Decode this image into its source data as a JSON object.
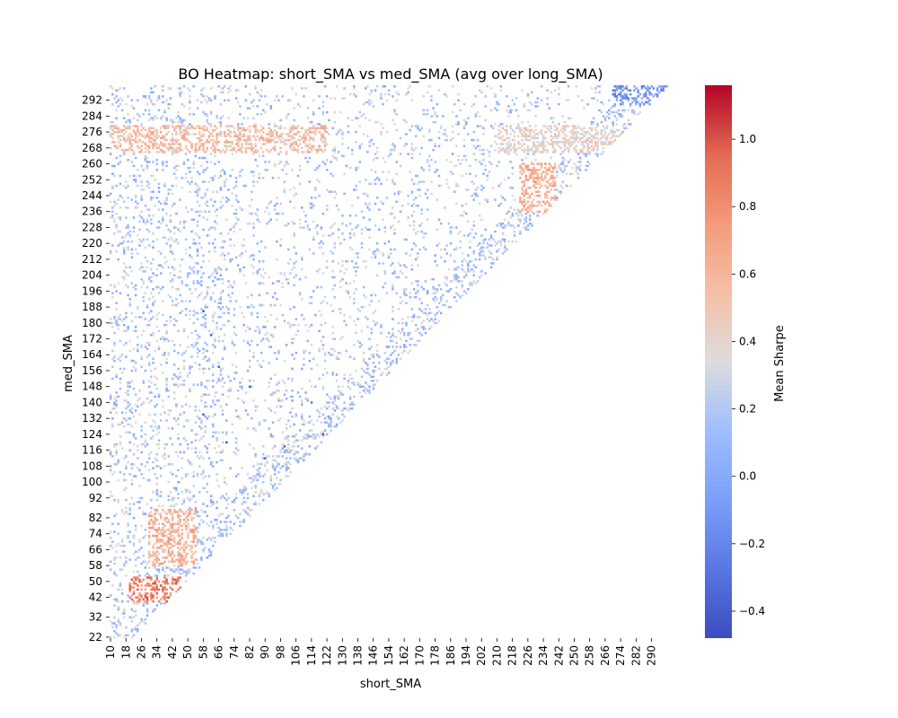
{
  "chart_data": {
    "type": "heatmap",
    "title": "BO Heatmap: short_SMA vs med_SMA (avg over long_SMA)",
    "xlabel": "short_SMA",
    "ylabel": "med_SMA",
    "colorbar_label": "Mean Sharpe",
    "colormap": "coolwarm",
    "vmin": -0.48,
    "vmax": 1.16,
    "colorbar_ticks": [
      "−0.4",
      "−0.2",
      "0.0",
      "0.2",
      "0.4",
      "0.6",
      "0.8",
      "1.0"
    ],
    "x_range": [
      10,
      299
    ],
    "y_range": [
      22,
      299
    ],
    "x_ticks": [
      "10",
      "18",
      "26",
      "34",
      "42",
      "50",
      "58",
      "66",
      "74",
      "82",
      "90",
      "98",
      "106",
      "114",
      "122",
      "130",
      "138",
      "146",
      "154",
      "162",
      "170",
      "178",
      "186",
      "194",
      "202",
      "210",
      "218",
      "226",
      "234",
      "242",
      "250",
      "258",
      "266",
      "274",
      "282",
      "290"
    ],
    "y_ticks": [
      "292",
      "284",
      "276",
      "268",
      "260",
      "252",
      "244",
      "236",
      "228",
      "220",
      "212",
      "204",
      "196",
      "188",
      "180",
      "172",
      "164",
      "156",
      "148",
      "140",
      "132",
      "124",
      "116",
      "108",
      "100",
      "92",
      "82",
      "74",
      "66",
      "58",
      "50",
      "42",
      "32",
      "22"
    ],
    "cell_values_note": "",
    "bands": [
      {
        "y": [
          266,
          279
        ],
        "x": [
          10,
          122
        ],
        "value": 0.55
      },
      {
        "y": [
          266,
          279
        ],
        "x": [
          210,
          274
        ],
        "value": 0.4
      },
      {
        "y": [
          236,
          260
        ],
        "x": [
          222,
          240
        ],
        "value": 0.62
      },
      {
        "y": [
          290,
          299
        ],
        "x": [
          270,
          299
        ],
        "value": -0.1
      },
      {
        "y": [
          40,
          52
        ],
        "x": [
          20,
          46
        ],
        "value": 0.85
      },
      {
        "y": [
          42,
          46
        ],
        "x": [
          30,
          36
        ],
        "value": 1.1
      },
      {
        "y": [
          58,
          86
        ],
        "x": [
          30,
          54
        ],
        "value": 0.6
      }
    ],
    "points": [
      {
        "x": 58,
        "y": 186,
        "v": -0.45
      },
      {
        "x": 62,
        "y": 174,
        "v": -0.42
      },
      {
        "x": 66,
        "y": 158,
        "v": -0.4
      },
      {
        "x": 70,
        "y": 120,
        "v": -0.42
      },
      {
        "x": 90,
        "y": 112,
        "v": -0.38
      },
      {
        "x": 100,
        "y": 118,
        "v": -0.4
      },
      {
        "x": 120,
        "y": 124,
        "v": -0.45
      },
      {
        "x": 58,
        "y": 134,
        "v": -0.42
      },
      {
        "x": 82,
        "y": 148,
        "v": -0.4
      },
      {
        "x": 114,
        "y": 140,
        "v": -0.3
      }
    ]
  }
}
